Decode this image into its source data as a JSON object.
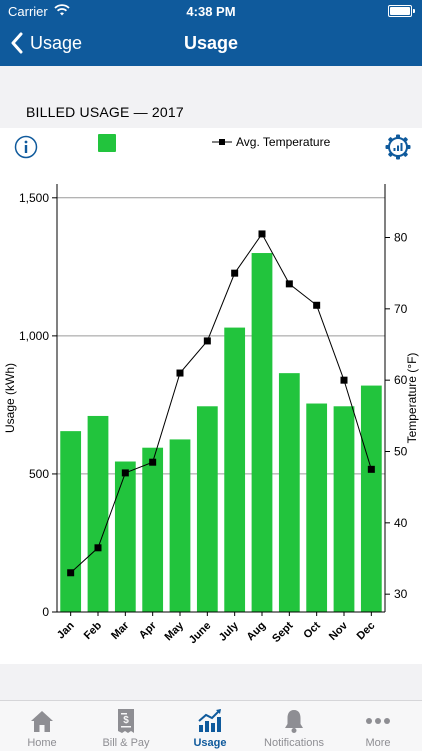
{
  "status_bar": {
    "carrier": "Carrier",
    "time": "4:38 PM"
  },
  "nav": {
    "back_label": "Usage",
    "title": "Usage"
  },
  "section_title": "BILLED USAGE — 2017",
  "legend": {
    "line_label": "Avg. Temperature"
  },
  "colors": {
    "bar": "#22c43d",
    "nav": "#0f5a9c",
    "line": "#000000"
  },
  "chart_data": {
    "type": "bar",
    "categories": [
      "Jan",
      "Feb",
      "Mar",
      "Apr",
      "May",
      "June",
      "July",
      "Aug",
      "Sept",
      "Oct",
      "Nov",
      "Dec"
    ],
    "series": [
      {
        "name": "",
        "type": "bar",
        "axis": "left",
        "values": [
          655,
          710,
          545,
          595,
          625,
          745,
          1030,
          1300,
          865,
          755,
          745,
          820
        ]
      },
      {
        "name": "Avg. Temperature",
        "type": "line",
        "axis": "right",
        "values": [
          33,
          36.5,
          47,
          48.5,
          61,
          65.5,
          75,
          80.5,
          73.5,
          70.5,
          60,
          47.5
        ]
      }
    ],
    "ylabel": "Usage (kWh)",
    "y2label": "Temperature (°F)",
    "ylim": [
      0,
      1550
    ],
    "y2lim": [
      27.5,
      87.5
    ],
    "yticks": [
      "0",
      "500",
      "1,000",
      "1,500"
    ],
    "yticks_values": [
      0,
      500,
      1000,
      1500
    ],
    "y2ticks": [
      "30",
      "40",
      "50",
      "60",
      "70",
      "80"
    ],
    "y2ticks_values": [
      30,
      40,
      50,
      60,
      70,
      80
    ],
    "grid": true,
    "legend": "top"
  },
  "tabs": [
    {
      "label": "Home",
      "icon": "home-icon"
    },
    {
      "label": "Bill & Pay",
      "icon": "bill-icon"
    },
    {
      "label": "Usage",
      "icon": "usage-chart-icon",
      "active": true
    },
    {
      "label": "Notifications",
      "icon": "bell-icon"
    },
    {
      "label": "More",
      "icon": "more-icon"
    }
  ]
}
